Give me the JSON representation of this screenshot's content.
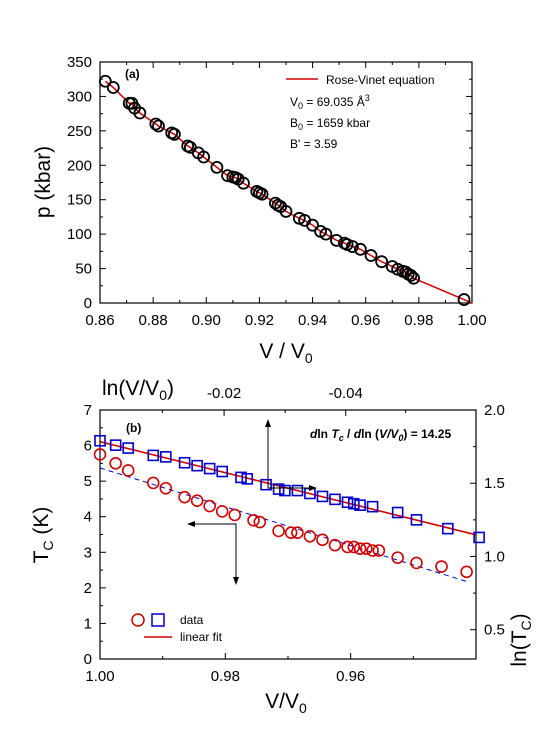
{
  "chart_data": [
    {
      "type": "scatter",
      "panel_label": "(a)",
      "xlabel": {
        "main": "V / V",
        "sub": "0"
      },
      "ylabel": "p (kbar)",
      "xlim": [
        0.86,
        1.0
      ],
      "ylim": [
        0,
        350
      ],
      "xticks": [
        "0.86",
        "0.88",
        "0.90",
        "0.92",
        "0.94",
        "0.96",
        "0.98",
        "1.00"
      ],
      "yticks": [
        "0",
        "50",
        "100",
        "150",
        "200",
        "250",
        "300",
        "350"
      ],
      "legend": {
        "fit_label": "Rose-Vinet equation",
        "params": [
          {
            "main": "V",
            "sub": "0",
            "tail": " = 69.035 Å",
            "sup": "3"
          },
          {
            "main": "B",
            "sub": "0",
            "tail": " = 1659 kbar",
            "sup": ""
          },
          {
            "main": "B' = 3.59",
            "sub": "",
            "tail": "",
            "sup": ""
          }
        ]
      },
      "series": [
        {
          "marker": "circle",
          "x": [
            0.862,
            0.865,
            0.871,
            0.872,
            0.873,
            0.875,
            0.881,
            0.882,
            0.887,
            0.888,
            0.893,
            0.894,
            0.897,
            0.899,
            0.904,
            0.908,
            0.91,
            0.911,
            0.912,
            0.914,
            0.919,
            0.92,
            0.921,
            0.926,
            0.927,
            0.928,
            0.93,
            0.935,
            0.937,
            0.94,
            0.943,
            0.945,
            0.949,
            0.952,
            0.953,
            0.955,
            0.958,
            0.962,
            0.966,
            0.97,
            0.972,
            0.974,
            0.975,
            0.976,
            0.977,
            0.978,
            0.997
          ],
          "y": [
            322,
            313,
            290,
            290,
            283,
            276,
            260,
            257,
            247,
            245,
            228,
            226,
            218,
            212,
            197,
            185,
            183,
            182,
            180,
            174,
            162,
            160,
            158,
            145,
            142,
            140,
            133,
            123,
            120,
            113,
            104,
            100,
            91,
            87,
            85,
            82,
            78,
            69,
            60,
            53,
            49,
            46,
            45,
            42,
            40,
            36,
            5
          ]
        }
      ],
      "fit_color": "#d40000",
      "marker_color": "#000000"
    },
    {
      "type": "scatter",
      "panel_label": "(b)",
      "xlabel": {
        "main": "V/V",
        "sub": "0"
      },
      "ylabel": {
        "main": "T",
        "sub": "C",
        "tail": " (K)"
      },
      "top_xlabel": {
        "main": "ln(V/V",
        "sub": "0",
        "tail": ")"
      },
      "right_ylabel": {
        "main": "ln(T",
        "sub": "C",
        "tail": ")"
      },
      "xlim": [
        1.0,
        0.94
      ],
      "ylim": [
        0,
        7
      ],
      "right_ylim": [
        0.3,
        2.0
      ],
      "xticks": [
        "1.00",
        "0.98",
        "0.96"
      ],
      "yticks": [
        "0",
        "1",
        "2",
        "3",
        "4",
        "5",
        "6",
        "7"
      ],
      "top_xticks": [
        "-0.02",
        "-0.04"
      ],
      "right_yticks": [
        "0.5",
        "1.0",
        "1.5",
        "2.0"
      ],
      "annotation": {
        "a": "d",
        "b": "ln ",
        "c": "T",
        "d": "c",
        "e": " / ",
        "f": "d",
        "g": "ln (",
        "h": "V/V",
        "i": "0",
        "j": ") = 14.25"
      },
      "legend": {
        "data_label": "data",
        "fit_label": "linear fit"
      },
      "series": [
        {
          "marker": "circle",
          "axis": "left",
          "x": [
            1.0,
            0.9975,
            0.9955,
            0.9915,
            0.9895,
            0.9865,
            0.9845,
            0.9825,
            0.9805,
            0.9785,
            0.9755,
            0.9745,
            0.9715,
            0.9695,
            0.9685,
            0.9665,
            0.9645,
            0.9625,
            0.9605,
            0.9595,
            0.9585,
            0.9575,
            0.9565,
            0.9555,
            0.9525,
            0.9495,
            0.9455,
            0.9415
          ],
          "y": [
            5.75,
            5.5,
            5.3,
            4.95,
            4.8,
            4.55,
            4.45,
            4.3,
            4.15,
            4.05,
            3.9,
            3.85,
            3.6,
            3.55,
            3.55,
            3.45,
            3.35,
            3.2,
            3.15,
            3.15,
            3.1,
            3.1,
            3.05,
            3.05,
            2.85,
            2.7,
            2.6,
            2.45
          ]
        },
        {
          "marker": "square",
          "axis": "right",
          "x": [
            1.0,
            0.9975,
            0.9955,
            0.9915,
            0.9895,
            0.9865,
            0.9845,
            0.9825,
            0.9805,
            0.9775,
            0.9765,
            0.9735,
            0.9715,
            0.9705,
            0.9685,
            0.9665,
            0.9645,
            0.9625,
            0.9605,
            0.9595,
            0.9585,
            0.9565,
            0.9525,
            0.9495,
            0.9445,
            0.9395
          ],
          "y": [
            1.79,
            1.76,
            1.74,
            1.69,
            1.68,
            1.64,
            1.62,
            1.6,
            1.58,
            1.54,
            1.53,
            1.49,
            1.46,
            1.45,
            1.45,
            1.43,
            1.41,
            1.39,
            1.37,
            1.36,
            1.35,
            1.34,
            1.3,
            1.25,
            1.19,
            1.13
          ]
        }
      ],
      "circle_color": "#cc0000",
      "square_color": "#0000cc",
      "fit_color": "#d40000",
      "dash_color": "#0000cc"
    }
  ]
}
